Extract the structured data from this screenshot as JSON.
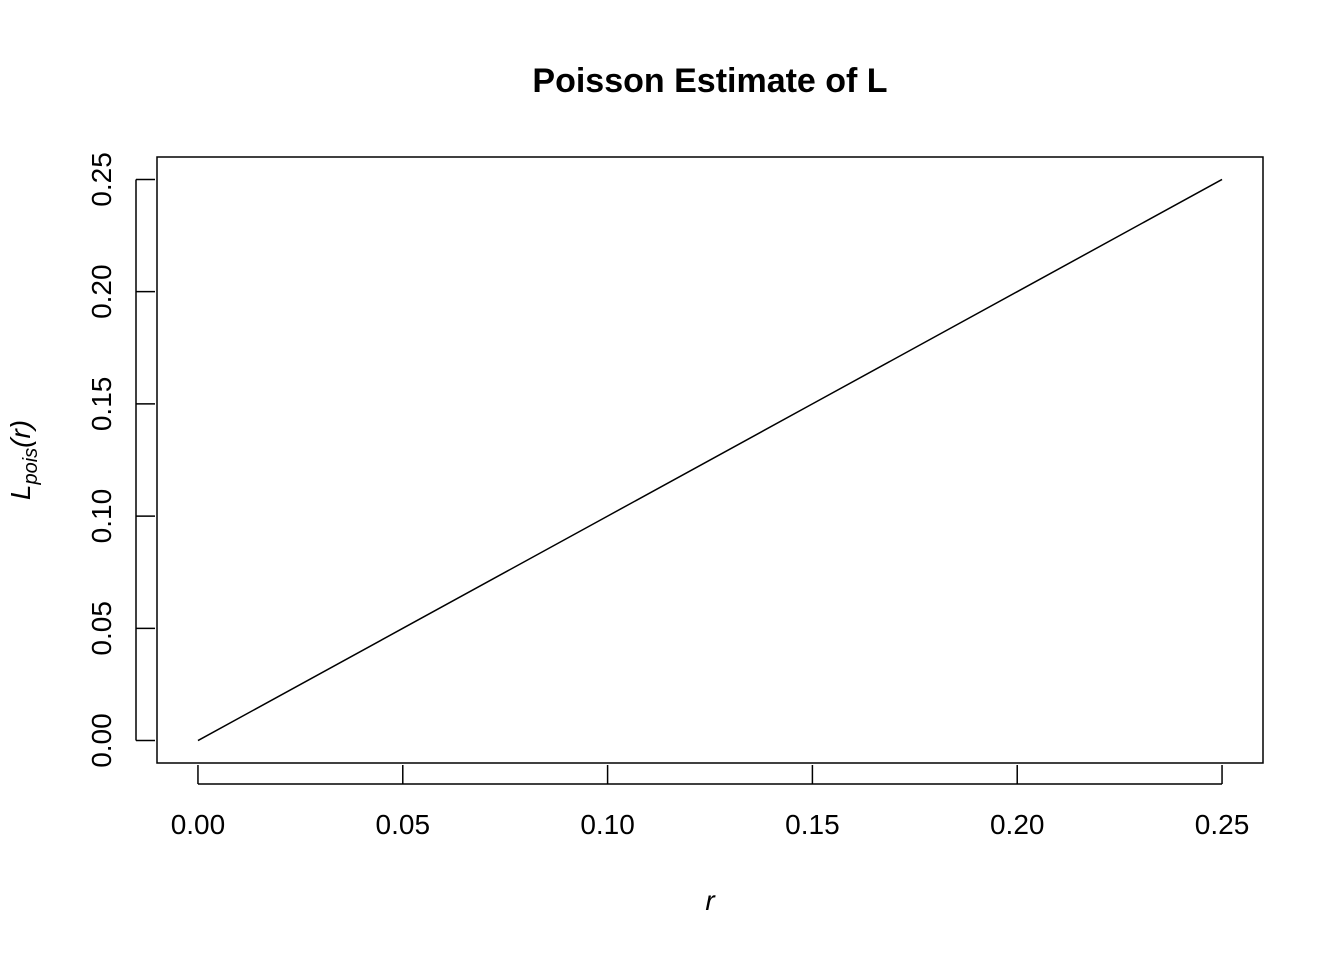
{
  "chart_data": {
    "type": "line",
    "title": "Poisson Estimate of L",
    "xlabel": "r",
    "ylabel": {
      "base": "L",
      "subscript": "pois",
      "argument": "(r)"
    },
    "xlim": [
      -0.01,
      0.26
    ],
    "ylim": [
      -0.01,
      0.26
    ],
    "x_ticks": [
      0.0,
      0.05,
      0.1,
      0.15,
      0.2,
      0.25
    ],
    "x_tick_labels": [
      "0.00",
      "0.05",
      "0.10",
      "0.15",
      "0.20",
      "0.25"
    ],
    "y_ticks": [
      0.0,
      0.05,
      0.1,
      0.15,
      0.2,
      0.25
    ],
    "y_tick_labels": [
      "0.00",
      "0.05",
      "0.10",
      "0.15",
      "0.20",
      "0.25"
    ],
    "grid": false,
    "legend": "none",
    "series": [
      {
        "color": "#000000",
        "x": [
          0.0,
          0.05,
          0.1,
          0.15,
          0.2,
          0.25
        ],
        "y": [
          0.0,
          0.05,
          0.1,
          0.15,
          0.2,
          0.25
        ]
      }
    ]
  }
}
